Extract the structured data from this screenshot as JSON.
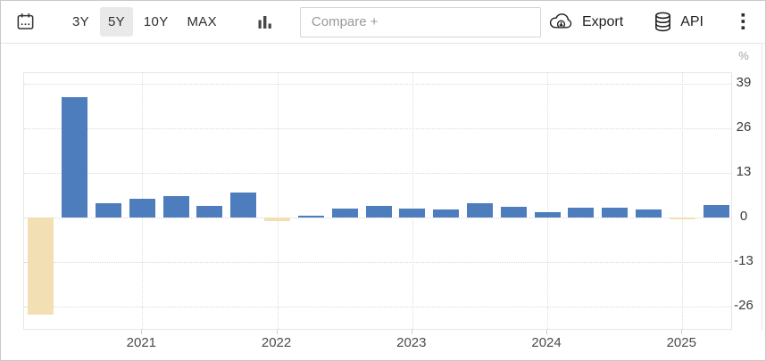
{
  "toolbar": {
    "calendar_icon": "calendar-icon",
    "ranges": [
      {
        "label": "3Y",
        "active": false
      },
      {
        "label": "5Y",
        "active": true
      },
      {
        "label": "10Y",
        "active": false
      },
      {
        "label": "MAX",
        "active": false
      }
    ],
    "chart_type_icon": "column-chart-icon",
    "compare_placeholder": "Compare +",
    "export_label": "Export",
    "export_icon": "cloud-download-icon",
    "api_label": "API",
    "api_icon": "database-icon",
    "menu_icon": "kebab-menu-icon"
  },
  "chart_data": {
    "type": "bar",
    "unit": "%",
    "x": [
      "2020-Q2",
      "2020-Q3",
      "2020-Q4",
      "2021-Q1",
      "2021-Q2",
      "2021-Q3",
      "2021-Q4",
      "2022-Q1",
      "2022-Q2",
      "2022-Q3",
      "2022-Q4",
      "2023-Q1",
      "2023-Q2",
      "2023-Q3",
      "2023-Q4",
      "2024-Q1",
      "2024-Q2",
      "2024-Q3",
      "2024-Q4",
      "2025-Q1",
      "2025-Q2"
    ],
    "values": [
      -28.1,
      35.2,
      4.4,
      5.6,
      6.4,
      3.5,
      7.4,
      -1.0,
      0.3,
      2.7,
      3.4,
      2.8,
      2.4,
      4.4,
      3.2,
      1.6,
      3.0,
      3.1,
      2.4,
      -0.5,
      3.8
    ],
    "y_ticks": [
      39,
      26,
      13,
      0,
      -13,
      -26
    ],
    "x_year_labels": [
      "2021",
      "2022",
      "2023",
      "2024",
      "2025"
    ],
    "ylim": [
      -32.9,
      42.25
    ],
    "grid": true,
    "legend": false,
    "axis_side": "right",
    "colors": {
      "positive": "#4e7dbd",
      "negative": "#f2dfb4"
    }
  }
}
